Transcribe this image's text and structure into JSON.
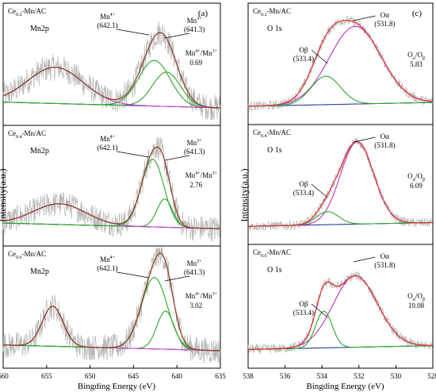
{
  "chart_data": [
    {
      "type": "line",
      "panel_label": "(a)",
      "xlabel": "Bingding Energy (eV)",
      "ylabel": "Intensity(a.u.)",
      "xlim": [
        660,
        635
      ],
      "x_ticks": [
        660,
        655,
        650,
        645,
        640,
        635
      ],
      "subplots": [
        {
          "sample": {
            "base": "Ce",
            "sub": "0.2",
            "rest": "-Mn/AC"
          },
          "orbital": "Mn2p",
          "peaks": [
            {
              "label": "Mn",
              "sup": "4+",
              "position": "(642.1)",
              "center": 642.1
            },
            {
              "label": "Mn",
              "sup": "3+",
              "position": "(641.3)",
              "center": 641.3
            }
          ],
          "ratio": {
            "label": "Mn",
            "sup1": "4+",
            "mid": "/Mn",
            "sup2": "3+",
            "value": "0.69"
          },
          "series": [
            {
              "name": "Mn4+ component",
              "color": "#2aa52a",
              "centers": [
                642.6
              ],
              "heights": [
                0.48
              ],
              "widths": [
                1.8
              ]
            },
            {
              "name": "Mn3+ component",
              "color": "#2aa52a",
              "centers": [
                641.2
              ],
              "heights": [
                0.36
              ],
              "widths": [
                1.6
              ]
            },
            {
              "name": "satellite",
              "color": "#d040d0",
              "centers": [
                654.0
              ],
              "heights": [
                0.38
              ],
              "widths": [
                3.2
              ]
            }
          ]
        },
        {
          "sample": {
            "base": "Ce",
            "sub": "0.4",
            "rest": "-Mn/AC"
          },
          "orbital": "Mn2p",
          "peaks": [
            {
              "label": "Mn",
              "sup": "4+",
              "position": "(642.1)",
              "center": 642.1
            },
            {
              "label": "Mn",
              "sup": "3+",
              "position": "(641.3)",
              "center": 641.3
            }
          ],
          "ratio": {
            "label": "Mn",
            "sup1": "4+",
            "mid": "/Mn",
            "sup2": "3+",
            "value": "2.76"
          },
          "series": [
            {
              "name": "Mn4+ component",
              "color": "#2aa52a",
              "centers": [
                642.8
              ],
              "heights": [
                0.72
              ],
              "widths": [
                1.3
              ]
            },
            {
              "name": "Mn3+ component",
              "color": "#2aa52a",
              "centers": [
                641.4
              ],
              "heights": [
                0.3
              ],
              "widths": [
                0.9
              ]
            },
            {
              "name": "satellite",
              "color": "#d040d0",
              "centers": [
                653.5
              ],
              "heights": [
                0.22
              ],
              "widths": [
                3.0
              ]
            }
          ]
        },
        {
          "sample": {
            "base": "Ce",
            "sub": "0.6",
            "rest": "-Mn/AC"
          },
          "orbital": "Mn2p",
          "peaks": [
            {
              "label": "Mn",
              "sup": "4+",
              "position": "(642.1)",
              "center": 642.1
            },
            {
              "label": "Mn",
              "sup": "3+",
              "position": "(641.3)",
              "center": 641.3
            }
          ],
          "ratio": {
            "label": "Mn",
            "sup1": "4+",
            "mid": "/Mn",
            "sup2": "3+",
            "value": "3.02"
          },
          "series": [
            {
              "name": "Mn4+ component",
              "color": "#2aa52a",
              "centers": [
                642.6
              ],
              "heights": [
                0.75
              ],
              "widths": [
                1.5
              ]
            },
            {
              "name": "Mn3+ component",
              "color": "#2aa52a",
              "centers": [
                641.3
              ],
              "heights": [
                0.4
              ],
              "widths": [
                1.0
              ]
            },
            {
              "name": "satellite",
              "color": "#d040d0",
              "centers": [
                654.3
              ],
              "heights": [
                0.42
              ],
              "widths": [
                1.2
              ]
            }
          ]
        }
      ]
    },
    {
      "type": "line",
      "panel_label": "(c)",
      "xlabel": "Bingding Energy (eV)",
      "ylabel": "Intensity(a.u.)",
      "xlim": [
        538,
        528
      ],
      "x_ticks": [
        538,
        536,
        534,
        532,
        530,
        528
      ],
      "subplots": [
        {
          "sample": {
            "base": "Ce",
            "sub": "0.2",
            "rest": "-Mn/AC"
          },
          "orbital": "O 1s",
          "peaks": [
            {
              "label": "Oα",
              "position": "(531.8)",
              "center": 531.8
            },
            {
              "label": "Oβ",
              "position": "(533.4)",
              "center": 533.4
            }
          ],
          "ratio": {
            "text": "O",
            "sub1": "α",
            "mid": "/O",
            "sub2": "β",
            "value": "5.83"
          },
          "series": [
            {
              "name": "Oα component",
              "color": "#c030c0",
              "centers": [
                532.2
              ],
              "heights": [
                0.82
              ],
              "widths": [
                1.4
              ]
            },
            {
              "name": "Oβ component",
              "color": "#2aa52a",
              "centers": [
                533.8
              ],
              "heights": [
                0.3
              ],
              "widths": [
                0.8
              ]
            }
          ]
        },
        {
          "sample": {
            "base": "Ce",
            "sub": "0.4",
            "rest": "-Mn/AC"
          },
          "orbital": "O 1s",
          "peaks": [
            {
              "label": "Oα",
              "position": "(531.8)",
              "center": 531.8
            },
            {
              "label": "Oβ",
              "position": "(533.4)",
              "center": 533.4
            }
          ],
          "ratio": {
            "text": "O",
            "sub1": "α",
            "mid": "/O",
            "sub2": "β",
            "value": "6.09"
          },
          "series": [
            {
              "name": "Oα component",
              "color": "#c030c0",
              "centers": [
                532.1
              ],
              "heights": [
                0.88
              ],
              "widths": [
                0.9
              ]
            },
            {
              "name": "Oβ component",
              "color": "#2aa52a",
              "centers": [
                533.7
              ],
              "heights": [
                0.14
              ],
              "widths": [
                0.6
              ]
            }
          ]
        },
        {
          "sample": {
            "base": "Ce",
            "sub": "0.6",
            "rest": "-Mn/AC"
          },
          "orbital": "O 1s",
          "peaks": [
            {
              "label": "Oα",
              "position": "(531.8)",
              "center": 531.8
            },
            {
              "label": "Oβ",
              "position": "(533.4)",
              "center": 533.4
            }
          ],
          "ratio": {
            "text": "O",
            "sub1": "α",
            "mid": "/O",
            "sub2": "β",
            "value": "10.08"
          },
          "series": [
            {
              "name": "Oα component",
              "color": "#c030c0",
              "centers": [
                532.2
              ],
              "heights": [
                0.74
              ],
              "widths": [
                1.2
              ]
            },
            {
              "name": "Oβ component",
              "color": "#2aa52a",
              "centers": [
                533.9
              ],
              "heights": [
                0.38
              ],
              "widths": [
                0.45
              ]
            }
          ]
        }
      ]
    }
  ],
  "colors": {
    "raw_data": "#b4b4b4",
    "envelope_xps_a": "#8b3a1e",
    "envelope_xps_c": "#e03030",
    "background": "#2a3a9a",
    "frame": "#000000"
  }
}
